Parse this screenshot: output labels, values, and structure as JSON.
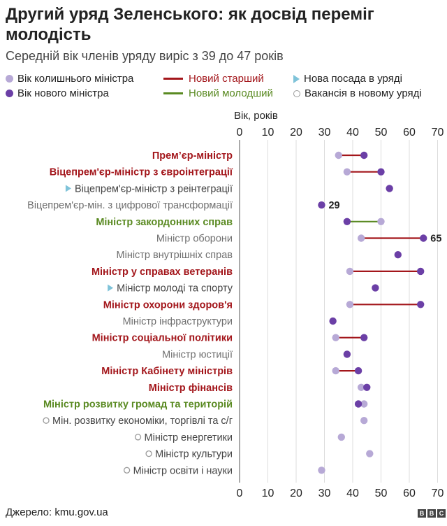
{
  "header": {
    "title": "Другий уряд Зеленського: як досвід переміг молодість",
    "subtitle": "Середній вік членів уряду виріс з 39 до 47 років"
  },
  "legend": {
    "old_minister": "Вік колишнього міністра",
    "new_minister": "Вік нового міністра",
    "new_older": "Новий старший",
    "new_younger": "Новий молодший",
    "new_post": "Нова посада в уряді",
    "vacancy": "Вакансія в новому уряді"
  },
  "colors": {
    "old_dot": "#b7a9d6",
    "new_dot": "#6b3fa6",
    "older_line": "#a3161b",
    "younger_line": "#5a8a22",
    "new_post_triangle": "#7fc3d9",
    "vacancy_ring": "#9a9a9a",
    "label_default": "#6f6f6f"
  },
  "footer": {
    "source": "Джерело: kmu.gov.ua",
    "logo_letters": [
      "B",
      "B",
      "C"
    ]
  },
  "chart_data": {
    "type": "dumbbell",
    "xlabel": "Вік, років",
    "xlim": [
      0,
      70
    ],
    "xticks": [
      "0",
      "10",
      "20",
      "30",
      "40",
      "50",
      "60",
      "70"
    ],
    "grid": "vertical",
    "rows": [
      {
        "label": "Прем’єр-міністр",
        "old": 35,
        "new": 44,
        "status": "older"
      },
      {
        "label": "Віцепрем'єр-міністр з євроінтеграції",
        "old": 38,
        "new": 50,
        "status": "older"
      },
      {
        "label": "Віцепрем'єр-міністр з реінтеграції",
        "old": null,
        "new": 53,
        "status": "new_post"
      },
      {
        "label": "Віцепрем'єр-мін. з цифрової трансформації",
        "old": null,
        "new": 29,
        "status": "plain",
        "annotation": "29"
      },
      {
        "label": "Міністр закордонних справ",
        "old": 50,
        "new": 38,
        "status": "younger"
      },
      {
        "label": "Міністр оборони",
        "old": 43,
        "new": 65,
        "status": "older_plain",
        "annotation": "65"
      },
      {
        "label": "Міністр внутрішніх справ",
        "old": null,
        "new": 56,
        "status": "plain"
      },
      {
        "label": "Міністр у справах ветеранів",
        "old": 39,
        "new": 64,
        "status": "older"
      },
      {
        "label": "Міністр молоді та спорту",
        "old": null,
        "new": 48,
        "status": "new_post"
      },
      {
        "label": "Міністр охорони здоров'я",
        "old": 39,
        "new": 64,
        "status": "older"
      },
      {
        "label": "Міністр інфраструктури",
        "old": null,
        "new": 33,
        "status": "plain"
      },
      {
        "label": "Міністр соціальної політики",
        "old": 34,
        "new": 44,
        "status": "older"
      },
      {
        "label": "Міністр юстиції",
        "old": null,
        "new": 38,
        "status": "plain"
      },
      {
        "label": "Міністр Кабінету міністрів",
        "old": 34,
        "new": 42,
        "status": "older"
      },
      {
        "label": "Міністр фінансів",
        "old": 43,
        "new": 45,
        "status": "older"
      },
      {
        "label": "Міністр розвитку громад та територій",
        "old": 44,
        "new": 42,
        "status": "younger"
      },
      {
        "label": "Мін. розвитку економіки, торгівлі та с/г",
        "old": 44,
        "new": null,
        "status": "vacancy"
      },
      {
        "label": "Міністр енергетики",
        "old": 36,
        "new": null,
        "status": "vacancy"
      },
      {
        "label": "Міністр культури",
        "old": 46,
        "new": null,
        "status": "vacancy"
      },
      {
        "label": "Міністр освіти і науки",
        "old": 29,
        "new": null,
        "status": "vacancy"
      }
    ]
  }
}
